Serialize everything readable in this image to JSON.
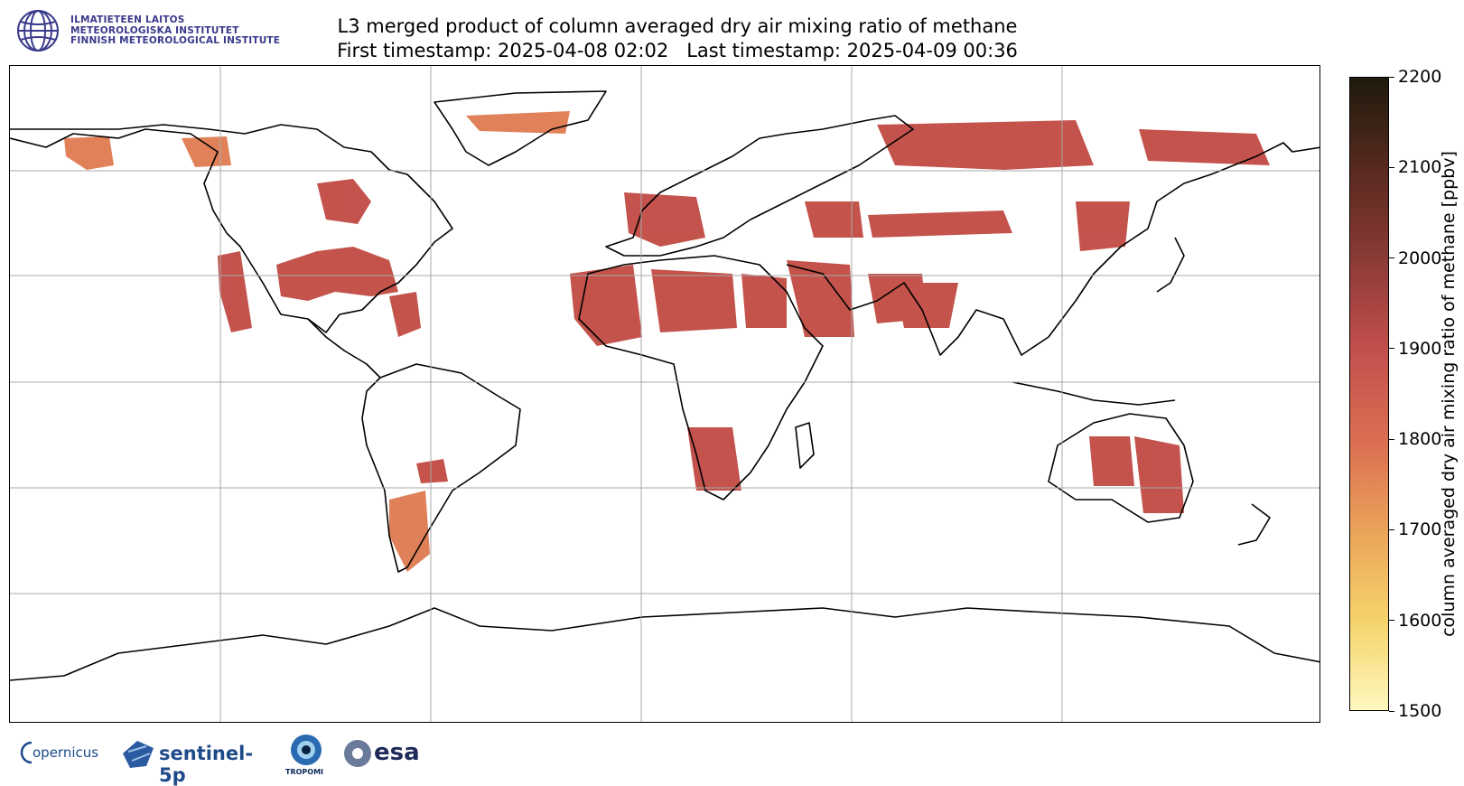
{
  "header": {
    "institute_lines": [
      "ILMATIETEEN LAITOS",
      "METEOROLOGISKA INSTITUTET",
      "FINNISH METEOROLOGICAL INSTITUTE"
    ],
    "title": "L3 merged product of column averaged dry air mixing ratio of methane",
    "subtitle": "First timestamp: 2025-04-08 02:02   Last timestamp: 2025-04-09 00:36"
  },
  "colorbar": {
    "label": "column averaged dry air mixing ratio of methane [ppbv]",
    "min": 1500,
    "max": 2200,
    "ticks": [
      "2200",
      "2100",
      "2000",
      "1900",
      "1800",
      "1700",
      "1600",
      "1500"
    ]
  },
  "map": {
    "projection": "Plate Carree",
    "gridlines": true,
    "extent_lon": [
      -180,
      180
    ],
    "extent_lat": [
      -90,
      90
    ],
    "colors": {
      "coast": "#000000",
      "grid": "#aaaaaa",
      "data_main": "#c04a42",
      "data_light": "#de7a50"
    }
  },
  "footer": {
    "logos": [
      "copernicus-logo",
      "sentinel-5p-logo",
      "tropomi-logo",
      "esa-logo"
    ],
    "copernicus": "opernicus",
    "sentinel": "sentinel-5p",
    "tropomi": "TROPOMI",
    "esa": "esa"
  }
}
